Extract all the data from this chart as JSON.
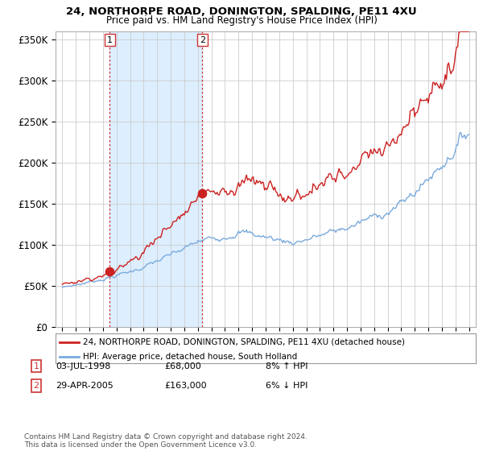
{
  "title": "24, NORTHORPE ROAD, DONINGTON, SPALDING, PE11 4XU",
  "subtitle": "Price paid vs. HM Land Registry's House Price Index (HPI)",
  "legend_line1": "24, NORTHORPE ROAD, DONINGTON, SPALDING, PE11 4XU (detached house)",
  "legend_line2": "HPI: Average price, detached house, South Holland",
  "footnote": "Contains HM Land Registry data © Crown copyright and database right 2024.\nThis data is licensed under the Open Government Licence v3.0.",
  "annotation1_label": "1",
  "annotation1_date": "03-JUL-1998",
  "annotation1_price": "£68,000",
  "annotation1_hpi": "8% ↑ HPI",
  "annotation2_label": "2",
  "annotation2_date": "29-APR-2005",
  "annotation2_price": "£163,000",
  "annotation2_hpi": "6% ↓ HPI",
  "sale1_x": 1998.5,
  "sale1_y": 68000,
  "sale2_x": 2005.33,
  "sale2_y": 163000,
  "red_line_color": "#cc2222",
  "blue_line_color": "#7aaadd",
  "shade_color": "#ddeeff",
  "sale_dot_color": "#cc2222",
  "vline_color": "#cc3333",
  "ylim": [
    0,
    360000
  ],
  "yticks": [
    0,
    50000,
    100000,
    150000,
    200000,
    250000,
    300000,
    350000
  ],
  "ytick_labels": [
    "£0",
    "£50K",
    "£100K",
    "£150K",
    "£200K",
    "£250K",
    "£300K",
    "£350K"
  ],
  "xlim_start": 1994.5,
  "xlim_end": 2025.5,
  "background_color": "#ffffff",
  "grid_color": "#cccccc"
}
